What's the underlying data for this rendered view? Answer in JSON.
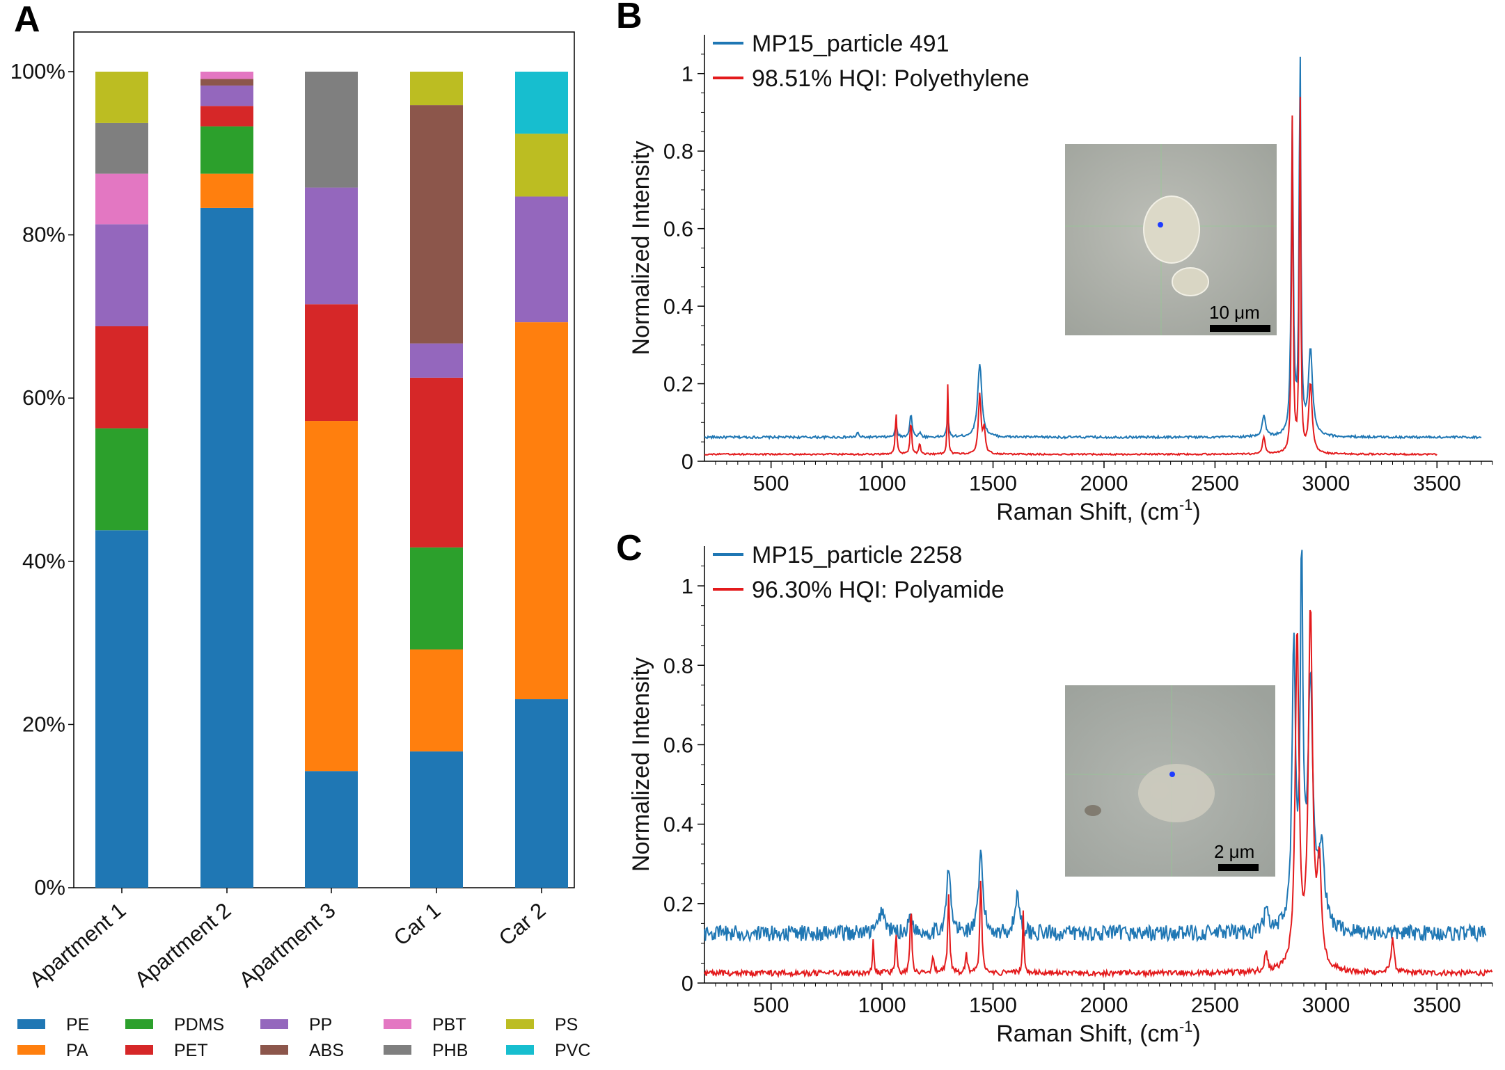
{
  "panels": {
    "a": "A",
    "b": "B",
    "c": "C"
  },
  "colors": {
    "PE": "#1f77b4",
    "PA": "#ff7f0e",
    "PDMS": "#2ca02c",
    "PET": "#d62728",
    "PP": "#9467bd",
    "ABS": "#8c564b",
    "PBT": "#e377c2",
    "PHB": "#7f7f7f",
    "PS": "#bcbd22",
    "PVC": "#17becf",
    "sample_line": "#1f77b4",
    "reference_line": "#e31a1c"
  },
  "chart_data": [
    {
      "id": "A",
      "type": "bar",
      "stacked": true,
      "categories": [
        "Apartment 1",
        "Apartment 2",
        "Apartment 3",
        "Car 1",
        "Car 2"
      ],
      "yticks": [
        "0%",
        "20%",
        "40%",
        "60%",
        "80%",
        "100%"
      ],
      "ylim": [
        0,
        100
      ],
      "legend_position": "bottom",
      "series": [
        {
          "name": "PE",
          "values": [
            43.8,
            83.3,
            14.3,
            16.7,
            23.1
          ]
        },
        {
          "name": "PA",
          "values": [
            0,
            4.2,
            42.9,
            12.5,
            46.2
          ]
        },
        {
          "name": "PDMS",
          "values": [
            12.5,
            5.8,
            0,
            12.5,
            0
          ]
        },
        {
          "name": "PET",
          "values": [
            12.5,
            2.5,
            14.3,
            20.8,
            0
          ]
        },
        {
          "name": "PP",
          "values": [
            12.5,
            2.5,
            14.3,
            4.2,
            15.4
          ]
        },
        {
          "name": "ABS",
          "values": [
            0,
            0.8,
            0,
            29.2,
            0
          ]
        },
        {
          "name": "PBT",
          "values": [
            6.2,
            0.9,
            0,
            0,
            0
          ]
        },
        {
          "name": "PHB",
          "values": [
            6.2,
            0,
            14.2,
            0,
            0
          ]
        },
        {
          "name": "PS",
          "values": [
            6.3,
            0,
            0,
            4.1,
            7.7
          ]
        },
        {
          "name": "PVC",
          "values": [
            0,
            0,
            0,
            0,
            7.6
          ]
        }
      ]
    },
    {
      "id": "B",
      "type": "line",
      "xlabel": "Raman Shift, (cm",
      "xlabel_sup": "-1",
      "xlabel_end": ")",
      "ylabel": "Normalized Intensity",
      "xlim": [
        200,
        3750
      ],
      "ylim": [
        0,
        1.1
      ],
      "xticks": [
        500,
        1000,
        1500,
        2000,
        2500,
        3000,
        3500
      ],
      "yticks": [
        0,
        0.2,
        0.4,
        0.6,
        0.8,
        1
      ],
      "ytick_labels": [
        "0",
        "0.2",
        "0.4",
        "0.6",
        "0.8",
        "1"
      ],
      "inset_scalebar": "10 μm",
      "series": [
        {
          "name": "MP15_particle 491",
          "baseline": 0.062,
          "x_end": 3700,
          "noise": 0.003,
          "peaks": [
            [
              890,
              0.012,
              10
            ],
            [
              1063,
              0.028,
              12
            ],
            [
              1130,
              0.06,
              12
            ],
            [
              1170,
              0.012,
              10
            ],
            [
              1296,
              0.05,
              10
            ],
            [
              1440,
              0.19,
              22
            ],
            [
              2720,
              0.055,
              18
            ],
            [
              2848,
              0.8,
              11
            ],
            [
              2883,
              1.0,
              9
            ],
            [
              2930,
              0.22,
              22
            ]
          ]
        },
        {
          "name": "98.51% HQI: Polyethylene",
          "baseline": 0.018,
          "x_end": 3500,
          "noise": 0.002,
          "peaks": [
            [
              1063,
              0.11,
              8
            ],
            [
              1130,
              0.09,
              8
            ],
            [
              1170,
              0.03,
              8
            ],
            [
              1296,
              0.18,
              6
            ],
            [
              1440,
              0.155,
              14
            ],
            [
              1460,
              0.06,
              12
            ],
            [
              2720,
              0.045,
              14
            ],
            [
              2848,
              0.86,
              8
            ],
            [
              2883,
              0.98,
              7
            ],
            [
              2930,
              0.18,
              18
            ]
          ]
        }
      ]
    },
    {
      "id": "C",
      "type": "line",
      "xlabel": "Raman Shift, (cm",
      "xlabel_sup": "-1",
      "xlabel_end": ")",
      "ylabel": "Normalized Intensity",
      "xlim": [
        200,
        3750
      ],
      "ylim": [
        0,
        1.1
      ],
      "xticks": [
        500,
        1000,
        1500,
        2000,
        2500,
        3000,
        3500
      ],
      "yticks": [
        0,
        0.2,
        0.4,
        0.6,
        0.8,
        1
      ],
      "ytick_labels": [
        "0",
        "0.2",
        "0.4",
        "0.6",
        "0.8",
        "1"
      ],
      "inset_scalebar": "2 μm",
      "series": [
        {
          "name": "MP15_particle 2258",
          "baseline": 0.125,
          "x_end": 3720,
          "noise": 0.02,
          "peaks": [
            [
              1000,
              0.06,
              30
            ],
            [
              1130,
              0.05,
              20
            ],
            [
              1300,
              0.16,
              22
            ],
            [
              1445,
              0.2,
              22
            ],
            [
              1610,
              0.1,
              24
            ],
            [
              2730,
              0.06,
              20
            ],
            [
              2855,
              0.72,
              18
            ],
            [
              2890,
              0.9,
              14
            ],
            [
              2930,
              0.6,
              28
            ],
            [
              2980,
              0.2,
              30
            ]
          ]
        },
        {
          "name": "96.30% HQI: Polyamide",
          "baseline": 0.025,
          "x_end": 3750,
          "noise": 0.007,
          "peaks": [
            [
              960,
              0.08,
              8
            ],
            [
              1063,
              0.1,
              8
            ],
            [
              1130,
              0.18,
              8
            ],
            [
              1230,
              0.05,
              8
            ],
            [
              1300,
              0.2,
              10
            ],
            [
              1380,
              0.05,
              10
            ],
            [
              1445,
              0.24,
              10
            ],
            [
              1636,
              0.16,
              7
            ],
            [
              2730,
              0.05,
              15
            ],
            [
              2870,
              0.85,
              20
            ],
            [
              2930,
              0.9,
              22
            ],
            [
              2970,
              0.25,
              22
            ],
            [
              3300,
              0.09,
              15
            ]
          ]
        }
      ]
    }
  ]
}
